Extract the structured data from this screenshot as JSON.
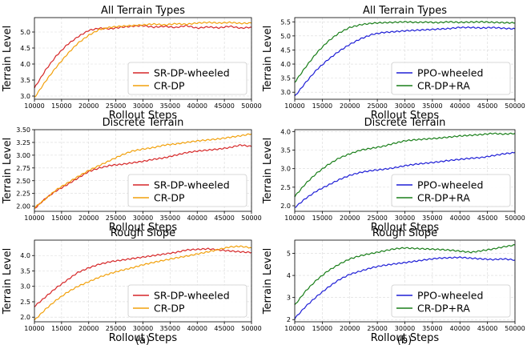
{
  "chart_data": [
    {
      "type": "line",
      "title": "All Terrain Types",
      "xlabel": "Rollout Steps",
      "ylabel": "Terrain Level",
      "xlim": [
        10000,
        50000
      ],
      "ylim": [
        2.9,
        5.45
      ],
      "xticks": [
        "10000",
        "15000",
        "20000",
        "25000",
        "30000",
        "35000",
        "40000",
        "45000",
        "50000"
      ],
      "yticks": [
        "3.0",
        "3.5",
        "4.0",
        "4.5",
        "5.0"
      ],
      "ytick_values": [
        3.0,
        3.5,
        4.0,
        4.5,
        5.0
      ],
      "series": [
        {
          "name": "SR-DP-wheeled",
          "color": "#d62728",
          "x": [
            10000,
            12000,
            14000,
            16000,
            18000,
            20000,
            22000,
            24000,
            26000,
            28000,
            30000,
            32000,
            34000,
            36000,
            38000,
            40000,
            42000,
            44000,
            46000,
            48000,
            50000
          ],
          "values": [
            3.25,
            3.8,
            4.25,
            4.6,
            4.85,
            5.05,
            5.12,
            5.1,
            5.15,
            5.18,
            5.2,
            5.15,
            5.18,
            5.14,
            5.2,
            5.12,
            5.16,
            5.13,
            5.18,
            5.12,
            5.15
          ]
        },
        {
          "name": "CR-DP",
          "color": "#f2a10c",
          "x": [
            10000,
            12000,
            14000,
            16000,
            18000,
            20000,
            22000,
            24000,
            26000,
            28000,
            30000,
            32000,
            34000,
            36000,
            38000,
            40000,
            42000,
            44000,
            46000,
            48000,
            50000
          ],
          "values": [
            2.95,
            3.45,
            3.9,
            4.3,
            4.65,
            4.9,
            5.08,
            5.15,
            5.18,
            5.2,
            5.22,
            5.25,
            5.22,
            5.26,
            5.24,
            5.28,
            5.3,
            5.28,
            5.3,
            5.27,
            5.28
          ]
        }
      ]
    },
    {
      "type": "line",
      "title": "All Terrain Types",
      "xlabel": "Rollout Steps",
      "ylabel": "Terrain Level",
      "xlim": [
        10000,
        50000
      ],
      "ylim": [
        2.75,
        5.65
      ],
      "xticks": [
        "10000",
        "15000",
        "20000",
        "25000",
        "30000",
        "35000",
        "40000",
        "45000",
        "50000"
      ],
      "yticks": [
        "3.0",
        "3.5",
        "4.0",
        "4.5",
        "5.0",
        "5.5"
      ],
      "ytick_values": [
        3.0,
        3.5,
        4.0,
        4.5,
        5.0,
        5.5
      ],
      "series": [
        {
          "name": "PPO-wheeled",
          "color": "#1f1fd6",
          "x": [
            10000,
            12000,
            14000,
            16000,
            18000,
            20000,
            22000,
            24000,
            26000,
            28000,
            30000,
            32000,
            34000,
            36000,
            38000,
            40000,
            42000,
            44000,
            46000,
            48000,
            50000
          ],
          "values": [
            2.85,
            3.35,
            3.8,
            4.15,
            4.45,
            4.7,
            4.9,
            5.05,
            5.12,
            5.15,
            5.18,
            5.2,
            5.22,
            5.24,
            5.26,
            5.3,
            5.3,
            5.28,
            5.3,
            5.27,
            5.25
          ]
        },
        {
          "name": "CR-DP+RA",
          "color": "#1a7f1a",
          "x": [
            10000,
            12000,
            14000,
            16000,
            18000,
            20000,
            22000,
            24000,
            26000,
            28000,
            30000,
            32000,
            34000,
            36000,
            38000,
            40000,
            42000,
            44000,
            46000,
            48000,
            50000
          ],
          "values": [
            3.35,
            3.9,
            4.4,
            4.8,
            5.1,
            5.3,
            5.4,
            5.45,
            5.47,
            5.48,
            5.5,
            5.48,
            5.49,
            5.47,
            5.5,
            5.48,
            5.49,
            5.5,
            5.48,
            5.47,
            5.46
          ]
        }
      ]
    },
    {
      "type": "line",
      "title": "Discrete Terrain",
      "xlabel": "Rollout Steps",
      "ylabel": "Terrain Level",
      "xlim": [
        10000,
        50000
      ],
      "ylim": [
        1.9,
        3.5
      ],
      "xticks": [
        "10000",
        "15000",
        "20000",
        "25000",
        "30000",
        "35000",
        "40000",
        "45000",
        "50000"
      ],
      "yticks": [
        "2.00",
        "2.25",
        "2.50",
        "2.75",
        "3.00",
        "3.25",
        "3.50"
      ],
      "ytick_values": [
        2.0,
        2.25,
        2.5,
        2.75,
        3.0,
        3.25,
        3.5
      ],
      "series": [
        {
          "name": "SR-DP-wheeled",
          "color": "#d62728",
          "x": [
            10000,
            12000,
            14000,
            16000,
            18000,
            20000,
            22000,
            24000,
            26000,
            28000,
            30000,
            32000,
            34000,
            36000,
            38000,
            40000,
            42000,
            44000,
            46000,
            48000,
            50000
          ],
          "values": [
            1.95,
            2.15,
            2.3,
            2.42,
            2.55,
            2.68,
            2.75,
            2.8,
            2.82,
            2.85,
            2.88,
            2.92,
            2.95,
            3.0,
            3.05,
            3.08,
            3.1,
            3.12,
            3.15,
            3.2,
            3.17
          ]
        },
        {
          "name": "CR-DP",
          "color": "#f2a10c",
          "x": [
            10000,
            12000,
            14000,
            16000,
            18000,
            20000,
            22000,
            24000,
            26000,
            28000,
            30000,
            32000,
            34000,
            36000,
            38000,
            40000,
            42000,
            44000,
            46000,
            48000,
            50000
          ],
          "values": [
            1.97,
            2.14,
            2.32,
            2.45,
            2.58,
            2.7,
            2.8,
            2.9,
            3.0,
            3.08,
            3.12,
            3.15,
            3.2,
            3.22,
            3.25,
            3.28,
            3.3,
            3.32,
            3.35,
            3.38,
            3.42
          ]
        }
      ]
    },
    {
      "type": "line",
      "title": "Discrete Terrain",
      "xlabel": "Rollout Steps",
      "ylabel": "Terrain Level",
      "xlim": [
        10000,
        50000
      ],
      "ylim": [
        1.85,
        4.05
      ],
      "xticks": [
        "10000",
        "15000",
        "20000",
        "25000",
        "30000",
        "35000",
        "40000",
        "45000",
        "50000"
      ],
      "yticks": [
        "2.0",
        "2.5",
        "3.0",
        "3.5",
        "4.0"
      ],
      "ytick_values": [
        2.0,
        2.5,
        3.0,
        3.5,
        4.0
      ],
      "series": [
        {
          "name": "PPO-wheeled",
          "color": "#1f1fd6",
          "x": [
            10000,
            12000,
            14000,
            16000,
            18000,
            20000,
            22000,
            24000,
            26000,
            28000,
            30000,
            32000,
            34000,
            36000,
            38000,
            40000,
            42000,
            44000,
            46000,
            48000,
            50000
          ],
          "values": [
            1.95,
            2.2,
            2.4,
            2.55,
            2.7,
            2.82,
            2.9,
            2.95,
            2.98,
            3.02,
            3.08,
            3.12,
            3.15,
            3.18,
            3.22,
            3.25,
            3.28,
            3.3,
            3.35,
            3.4,
            3.43
          ]
        },
        {
          "name": "CR-DP+RA",
          "color": "#1a7f1a",
          "x": [
            10000,
            12000,
            14000,
            16000,
            18000,
            20000,
            22000,
            24000,
            26000,
            28000,
            30000,
            32000,
            34000,
            36000,
            38000,
            40000,
            42000,
            44000,
            46000,
            48000,
            50000
          ],
          "values": [
            2.25,
            2.6,
            2.88,
            3.1,
            3.28,
            3.4,
            3.5,
            3.55,
            3.6,
            3.68,
            3.75,
            3.78,
            3.8,
            3.82,
            3.85,
            3.88,
            3.9,
            3.92,
            3.95,
            3.93,
            3.95
          ]
        }
      ]
    },
    {
      "type": "line",
      "title": "Rough Slope",
      "xlabel": "Rollout Steps",
      "ylabel": "Terrain Level",
      "xlim": [
        10000,
        50000
      ],
      "ylim": [
        1.85,
        4.5
      ],
      "xticks": [
        "10000",
        "15000",
        "20000",
        "25000",
        "30000",
        "35000",
        "40000",
        "45000",
        "50000"
      ],
      "yticks": [
        "2.0",
        "2.5",
        "3.0",
        "3.5",
        "4.0"
      ],
      "ytick_values": [
        2.0,
        2.5,
        3.0,
        3.5,
        4.0
      ],
      "series": [
        {
          "name": "SR-DP-wheeled",
          "color": "#d62728",
          "x": [
            10000,
            12000,
            14000,
            16000,
            18000,
            20000,
            22000,
            24000,
            26000,
            28000,
            30000,
            32000,
            34000,
            36000,
            38000,
            40000,
            42000,
            44000,
            46000,
            48000,
            50000
          ],
          "values": [
            2.35,
            2.65,
            2.95,
            3.2,
            3.45,
            3.6,
            3.72,
            3.8,
            3.85,
            3.9,
            3.95,
            4.0,
            4.05,
            4.1,
            4.18,
            4.2,
            4.22,
            4.18,
            4.15,
            4.12,
            4.1
          ]
        },
        {
          "name": "CR-DP",
          "color": "#f2a10c",
          "x": [
            10000,
            12000,
            14000,
            16000,
            18000,
            20000,
            22000,
            24000,
            26000,
            28000,
            30000,
            32000,
            34000,
            36000,
            38000,
            40000,
            42000,
            44000,
            46000,
            48000,
            50000
          ],
          "values": [
            1.9,
            2.25,
            2.55,
            2.8,
            3.0,
            3.15,
            3.3,
            3.42,
            3.52,
            3.6,
            3.7,
            3.78,
            3.85,
            3.92,
            3.98,
            4.05,
            4.12,
            4.2,
            4.28,
            4.3,
            4.25
          ]
        }
      ]
    },
    {
      "type": "line",
      "title": "Rough Slope",
      "xlabel": "Rollout Steps",
      "ylabel": "Terrain Level",
      "xlim": [
        10000,
        50000
      ],
      "ylim": [
        1.9,
        5.6
      ],
      "xticks": [
        "10000",
        "15000",
        "20000",
        "25000",
        "30000",
        "35000",
        "40000",
        "45000",
        "50000"
      ],
      "yticks": [
        "2",
        "3",
        "4",
        "5"
      ],
      "ytick_values": [
        2,
        3,
        4,
        5
      ],
      "series": [
        {
          "name": "PPO-wheeled",
          "color": "#1f1fd6",
          "x": [
            10000,
            12000,
            14000,
            16000,
            18000,
            20000,
            22000,
            24000,
            26000,
            28000,
            30000,
            32000,
            34000,
            36000,
            38000,
            40000,
            42000,
            44000,
            46000,
            48000,
            50000
          ],
          "values": [
            2.05,
            2.6,
            3.05,
            3.45,
            3.8,
            4.05,
            4.2,
            4.35,
            4.45,
            4.52,
            4.58,
            4.65,
            4.72,
            4.78,
            4.8,
            4.82,
            4.78,
            4.75,
            4.72,
            4.75,
            4.7
          ]
        },
        {
          "name": "CR-DP+RA",
          "color": "#1a7f1a",
          "x": [
            10000,
            12000,
            14000,
            16000,
            18000,
            20000,
            22000,
            24000,
            26000,
            28000,
            30000,
            32000,
            34000,
            36000,
            38000,
            40000,
            42000,
            44000,
            46000,
            48000,
            50000
          ],
          "values": [
            2.65,
            3.3,
            3.8,
            4.2,
            4.5,
            4.75,
            4.9,
            5.0,
            5.1,
            5.2,
            5.25,
            5.22,
            5.2,
            5.18,
            5.15,
            5.1,
            5.05,
            5.12,
            5.2,
            5.3,
            5.38
          ]
        }
      ]
    }
  ],
  "panel_labels": [
    "(a)",
    "(b)"
  ]
}
